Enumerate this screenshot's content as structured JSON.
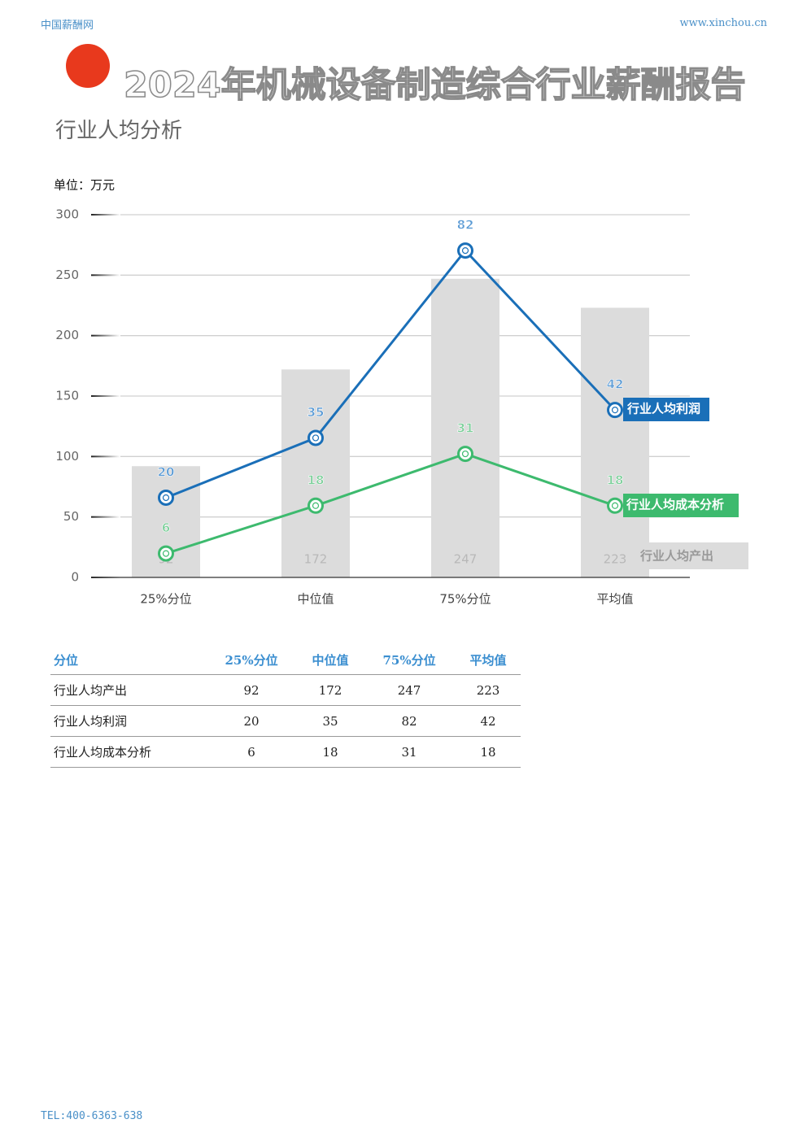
{
  "header": {
    "site": "中国薪酬网",
    "url": "www.xinchou.cn"
  },
  "title": "2024年机械设备制造综合行业薪酬报告",
  "subtitle": "行业人均分析",
  "chart_data": {
    "type": "combo",
    "unit_label": "单位：万元",
    "categories": [
      "25%分位",
      "中位值",
      "75%分位",
      "平均值"
    ],
    "ylim": [
      0,
      300
    ],
    "yticks": [
      0,
      50,
      100,
      150,
      200,
      250,
      300
    ],
    "y2lim": [
      0,
      91
    ],
    "grid": true,
    "series": [
      {
        "name": "行业人均产出",
        "type": "bar",
        "color": "#dcdcdc",
        "label_color": "#b8b8b8",
        "values": [
          92,
          172,
          247,
          223
        ]
      },
      {
        "name": "行业人均利润",
        "type": "line",
        "axis": "y2",
        "color": "#1a6fb8",
        "label_color": "#5b9bd5",
        "values": [
          20,
          35,
          82,
          42
        ]
      },
      {
        "name": "行业人均成本分析",
        "type": "line",
        "axis": "y2",
        "color": "#3dba6e",
        "label_color": "#7ccf9a",
        "values": [
          6,
          18,
          31,
          18
        ]
      }
    ]
  },
  "table": {
    "header": [
      "分位",
      "25%分位",
      "中位值",
      "75%分位",
      "平均值"
    ],
    "rows": [
      [
        "行业人均产出",
        "92",
        "172",
        "247",
        "223"
      ],
      [
        "行业人均利润",
        "20",
        "35",
        "82",
        "42"
      ],
      [
        "行业人均成本分析",
        "6",
        "18",
        "31",
        "18"
      ]
    ]
  },
  "footer": "TEL:400-6363-638"
}
